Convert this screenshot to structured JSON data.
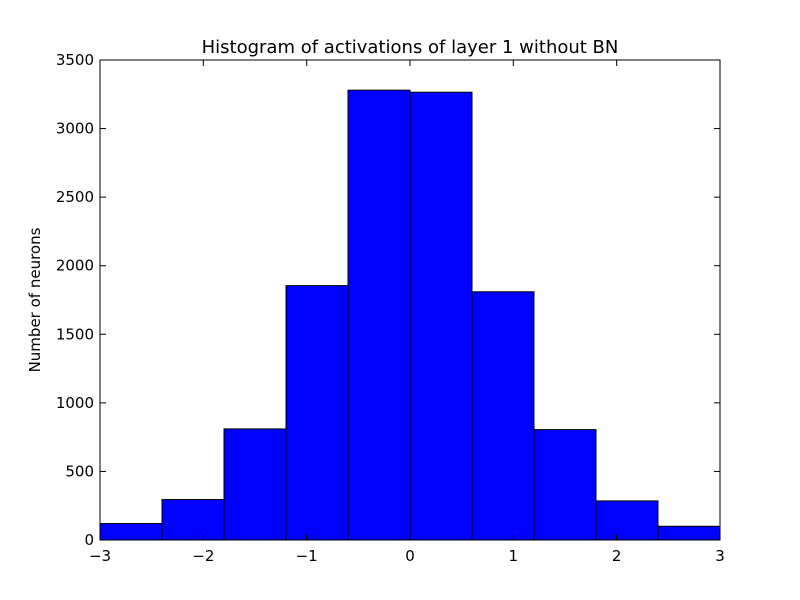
{
  "chart_data": {
    "type": "bar",
    "title": "Histogram of activations of layer 1  without BN",
    "xlabel": "",
    "ylabel": "Number of neurons",
    "bin_edges": [
      -3.0,
      -2.4,
      -1.8,
      -1.2,
      -0.6,
      0.0,
      0.6,
      1.2,
      1.8,
      2.4,
      3.0
    ],
    "values": [
      120,
      295,
      810,
      1855,
      3280,
      3265,
      1810,
      805,
      285,
      100
    ],
    "xlim": [
      -3,
      3
    ],
    "ylim": [
      0,
      3500
    ],
    "x_ticks": [
      -3,
      -2,
      -1,
      0,
      1,
      2,
      3
    ],
    "x_tick_labels": [
      "−3",
      "−2",
      "−1",
      "0",
      "1",
      "2",
      "3"
    ],
    "y_ticks": [
      0,
      500,
      1000,
      1500,
      2000,
      2500,
      3000,
      3500
    ],
    "y_tick_labels": [
      "0",
      "500",
      "1000",
      "1500",
      "2000",
      "2500",
      "3000",
      "3500"
    ],
    "bar_color": "#0000ff",
    "edge_color": "#000000",
    "grid": false,
    "legend": "none"
  }
}
